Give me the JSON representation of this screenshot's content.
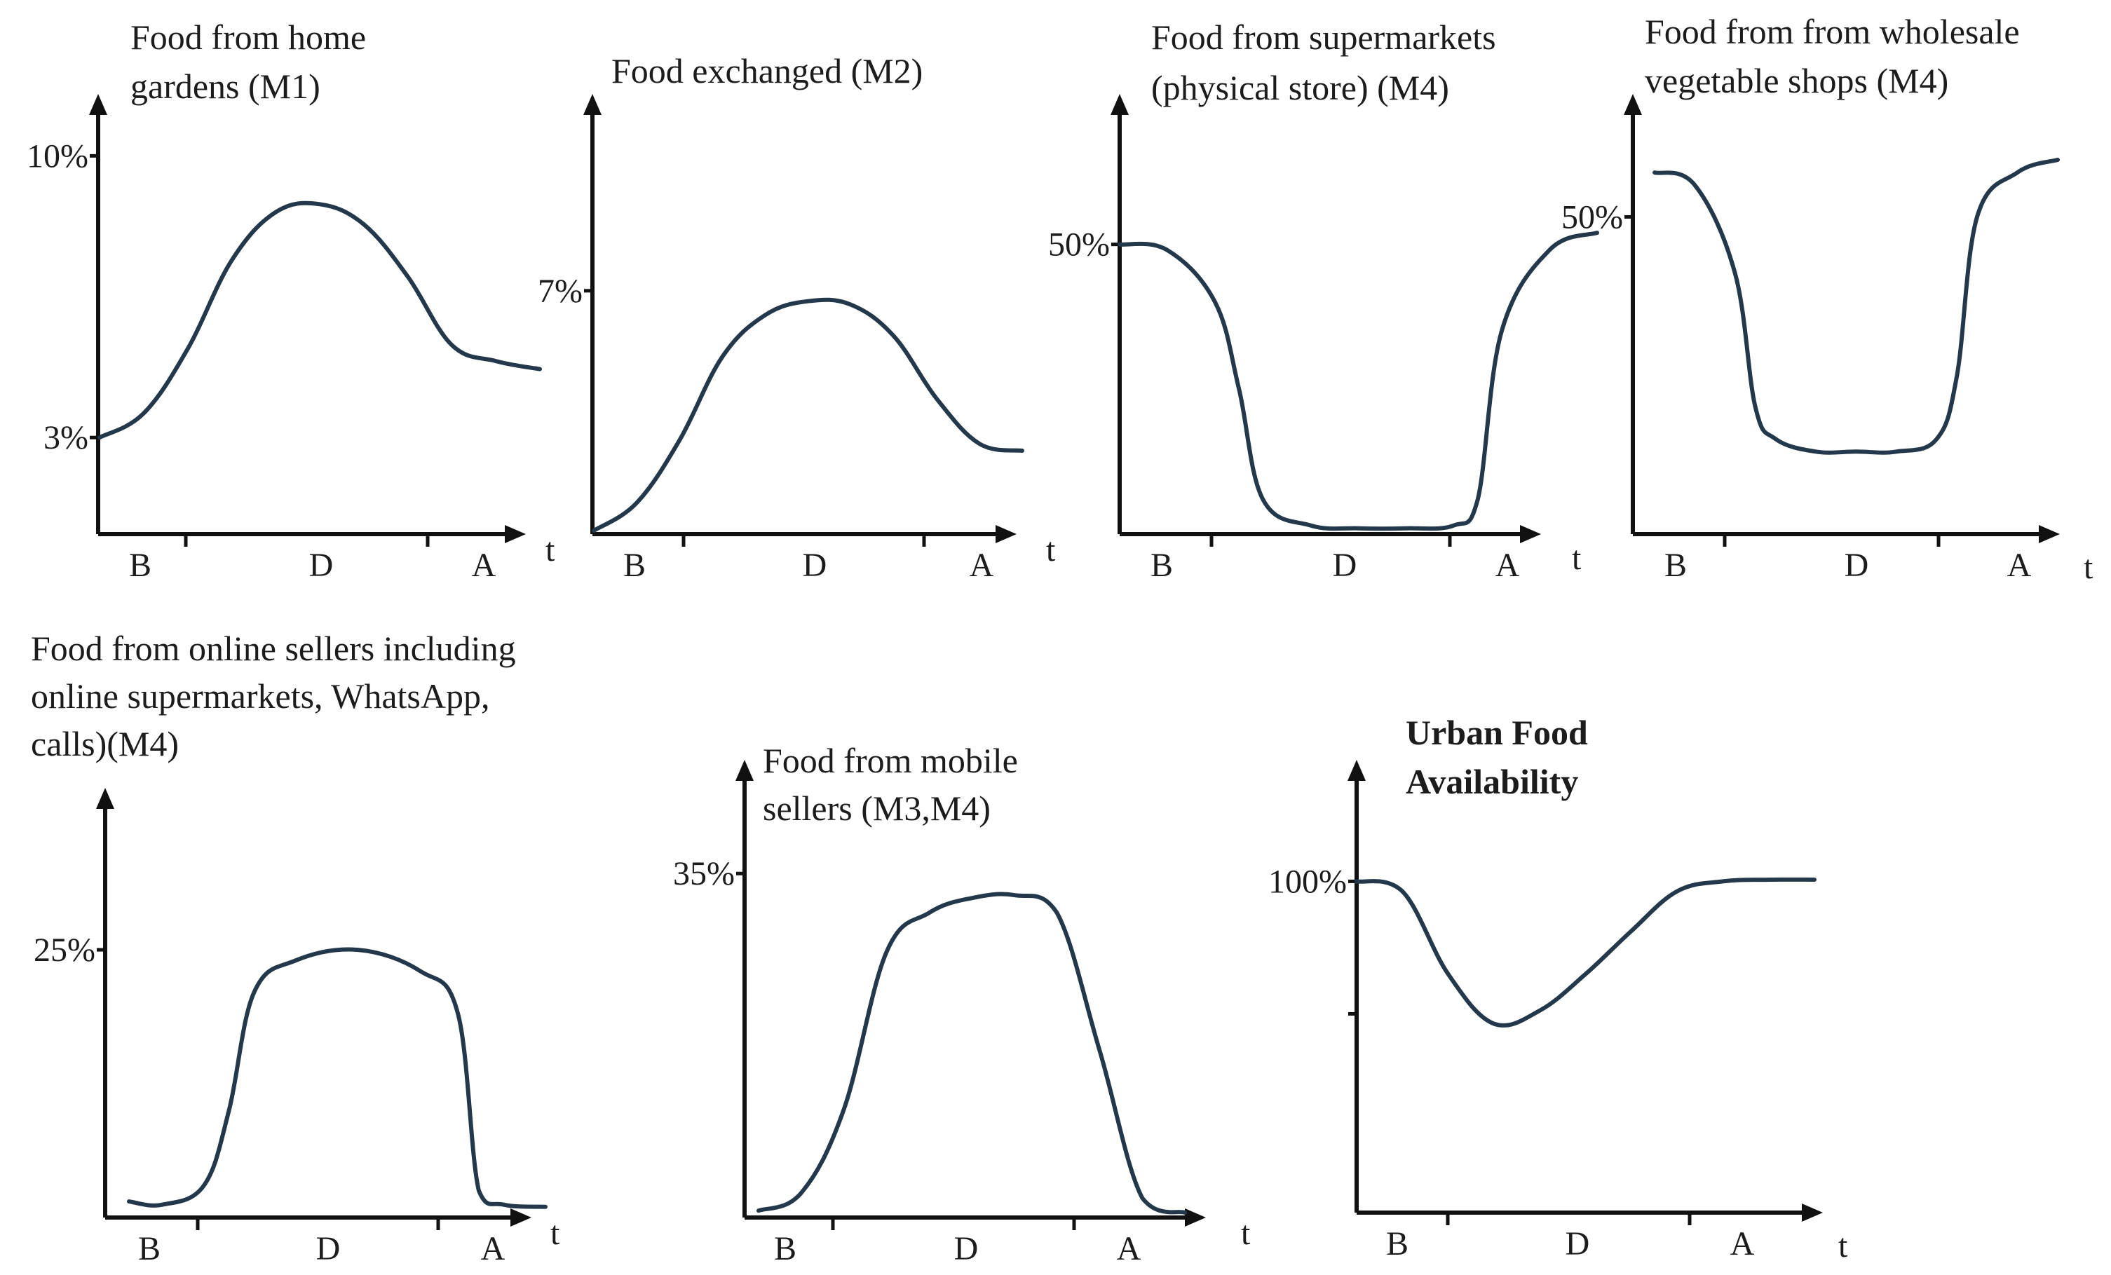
{
  "chart_data": [
    {
      "id": "home-gardens",
      "type": "line",
      "title_lines": [
        "Food from home",
        "gardens (M1)"
      ],
      "title_bold": false,
      "x_period_labels": [
        "B",
        "D",
        "A"
      ],
      "x_axis_label": "t",
      "y_tick_labels": [
        {
          "label": "10%",
          "value": 10
        },
        {
          "label": "3%",
          "value": 3
        }
      ],
      "ylim": [
        0.6,
        11.4
      ],
      "x": [
        0,
        10,
        20,
        30,
        40,
        50,
        60,
        70,
        80,
        90,
        100
      ],
      "values": [
        3.0,
        3.6,
        5.2,
        7.4,
        8.6,
        8.8,
        8.3,
        7.0,
        5.3,
        4.9,
        4.7
      ]
    },
    {
      "id": "food-exchanged",
      "type": "line",
      "title_lines": [
        "Food exchanged (M2)"
      ],
      "title_bold": false,
      "x_period_labels": [
        "B",
        "D",
        "A"
      ],
      "x_axis_label": "t",
      "y_tick_labels": [
        {
          "label": "7%",
          "value": 7
        }
      ],
      "ylim": [
        0,
        12.5
      ],
      "x": [
        0,
        10,
        20,
        30,
        40,
        50,
        60,
        70,
        80,
        90,
        100
      ],
      "values": [
        0.1,
        0.9,
        2.7,
        5.1,
        6.3,
        6.7,
        6.6,
        5.7,
        3.9,
        2.6,
        2.4
      ]
    },
    {
      "id": "supermarkets",
      "type": "line",
      "title_lines": [
        "Food from supermarkets",
        "(physical store) (M4)"
      ],
      "title_bold": false,
      "x_period_labels": [
        "B",
        "D",
        "A"
      ],
      "x_axis_label": "t",
      "y_tick_labels": [
        {
          "label": "50%",
          "value": 50
        }
      ],
      "ylim": [
        0,
        75
      ],
      "x": [
        0,
        10,
        20,
        25,
        30,
        40,
        50,
        60,
        70,
        75,
        80,
        90,
        100
      ],
      "values": [
        50,
        49,
        40,
        25,
        6,
        1.5,
        1,
        1,
        1.5,
        6,
        35,
        49,
        52
      ]
    },
    {
      "id": "wholesale",
      "type": "line",
      "title_lines": [
        "Food from from wholesale",
        "vegetable shops (M4)"
      ],
      "title_bold": false,
      "x_period_labels": [
        "B",
        "D",
        "A"
      ],
      "x_axis_label": "t",
      "y_tick_labels": [
        {
          "label": "50%",
          "value": 50
        }
      ],
      "ylim": [
        0,
        68.5
      ],
      "x": [
        0,
        10,
        20,
        25,
        30,
        40,
        50,
        60,
        70,
        75,
        80,
        90,
        100
      ],
      "values": [
        57,
        55,
        41,
        20,
        15,
        13,
        13,
        13,
        15,
        25,
        50,
        57,
        59
      ]
    },
    {
      "id": "online-sellers",
      "type": "line",
      "title_lines": [
        "Food from online sellers including",
        "online supermarkets, WhatsApp,",
        "calls)(M4)"
      ],
      "title_bold": false,
      "x_period_labels": [
        "B",
        "D",
        "A"
      ],
      "x_axis_label": "t",
      "y_tick_labels": [
        {
          "label": "25%",
          "value": 25
        }
      ],
      "ylim": [
        0,
        39.6
      ],
      "x": [
        0,
        8,
        18,
        24,
        30,
        40,
        55,
        70,
        79,
        84,
        90,
        100
      ],
      "values": [
        1.5,
        1.2,
        3,
        10,
        21,
        24,
        25,
        23,
        19,
        2.5,
        1.2,
        1
      ]
    },
    {
      "id": "mobile-sellers",
      "type": "line",
      "title_lines": [
        "Food from mobile",
        "sellers (M3,M4)"
      ],
      "title_bold": false,
      "x_period_labels": [
        "B",
        "D",
        "A"
      ],
      "x_axis_label": "t",
      "y_tick_labels": [
        {
          "label": "35%",
          "value": 35
        }
      ],
      "ylim": [
        0,
        46
      ],
      "x": [
        0,
        10,
        20,
        30,
        40,
        50,
        60,
        70,
        80,
        90,
        100
      ],
      "values": [
        0.7,
        2.5,
        11,
        27,
        31,
        32.5,
        32.8,
        31,
        17,
        2,
        0.5
      ]
    },
    {
      "id": "urban-food-availability",
      "type": "line",
      "title_lines": [
        "Urban Food",
        "Availability"
      ],
      "title_bold": true,
      "x_period_labels": [
        "B",
        "D",
        "A"
      ],
      "x_axis_label": "t",
      "y_tick_labels": [
        {
          "label": "100%",
          "value": 100
        },
        {
          "label": "",
          "value": 60
        }
      ],
      "ylim": [
        0,
        135
      ],
      "x": [
        0,
        10,
        20,
        30,
        40,
        50,
        60,
        70,
        80,
        90,
        100
      ],
      "values": [
        100,
        97,
        72,
        57,
        61,
        72,
        85,
        97,
        100,
        100.5,
        100.5
      ]
    }
  ]
}
